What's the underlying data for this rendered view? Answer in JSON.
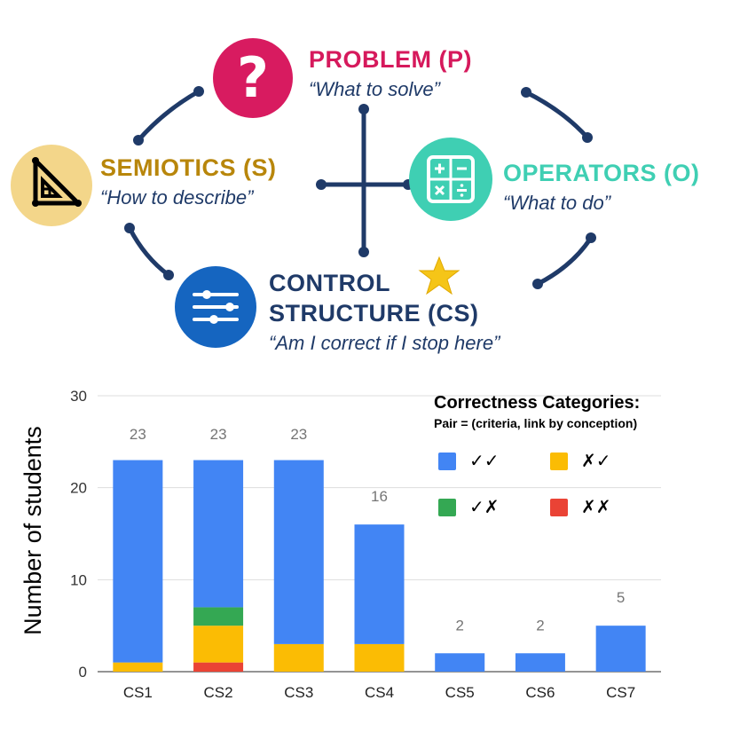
{
  "diagram": {
    "problem": {
      "title": "PROBLEM (P)",
      "quote": "“What to solve”",
      "icon": "question-mark-icon",
      "color": "#d81b60",
      "title_color": "#d6195c"
    },
    "semiotics": {
      "title": "SEMIOTICS (S)",
      "quote": "“How to describe”",
      "icon": "triangle-ruler-icon",
      "color": "#f3d68a",
      "title_color": "#b8860b"
    },
    "operators": {
      "title": "OPERATORS (O)",
      "quote": "“What to do”",
      "icon": "calculator-icon",
      "color": "#3fcfb3",
      "title_color": "#3fcfb3"
    },
    "control": {
      "title_line1": "CONTROL",
      "title_line2": "STRUCTURE (CS)",
      "quote": "“Am I correct if I stop here”",
      "icon": "sliders-icon",
      "color": "#1565c0",
      "title_color": "#1f3a68",
      "badge_icon": "star-icon",
      "badge_color": "#f5c518"
    },
    "connector_color": "#1f3a68"
  },
  "legend": {
    "title": "Correctness Categories:",
    "subtitle": "Pair = (criteria, link by conception)",
    "items": [
      {
        "label": "✓✓",
        "color": "#4285f4"
      },
      {
        "label": "✗✓",
        "color": "#fbbc04"
      },
      {
        "label": "✓✗",
        "color": "#34a853"
      },
      {
        "label": "✗✗",
        "color": "#ea4335"
      }
    ]
  },
  "chart_data": {
    "type": "bar",
    "stacked": true,
    "ylabel": "Number of students",
    "xlabel": "",
    "ylim": [
      0,
      30
    ],
    "yticks": [
      0,
      10,
      20,
      30
    ],
    "grid": true,
    "categories": [
      "CS1",
      "CS2",
      "CS3",
      "CS4",
      "CS5",
      "CS6",
      "CS7"
    ],
    "totals": [
      "23",
      "23",
      "23",
      "16",
      "2",
      "2",
      "5"
    ],
    "series": [
      {
        "name": "✗✗",
        "color": "#ea4335",
        "values": [
          0,
          1,
          0,
          0,
          0,
          0,
          0
        ]
      },
      {
        "name": "✗✓",
        "color": "#fbbc04",
        "values": [
          1,
          4,
          3,
          3,
          0,
          0,
          0
        ]
      },
      {
        "name": "✓✗",
        "color": "#34a853",
        "values": [
          0,
          2,
          0,
          0,
          0,
          0,
          0
        ]
      },
      {
        "name": "✓✓",
        "color": "#4285f4",
        "values": [
          22,
          16,
          20,
          13,
          2,
          2,
          5
        ]
      }
    ]
  }
}
